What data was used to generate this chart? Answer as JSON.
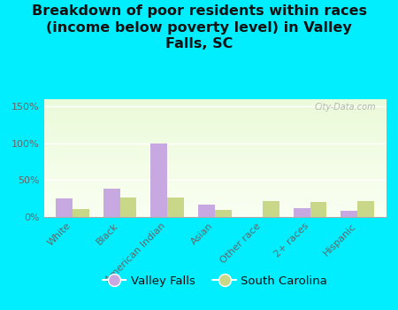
{
  "title": "Breakdown of poor residents within races\n(income below poverty level) in Valley\nFalls, SC",
  "categories": [
    "White",
    "Black",
    "American Indian",
    "Asian",
    "Other race",
    "2+ races",
    "Hispanic"
  ],
  "valley_falls": [
    25,
    38,
    100,
    17,
    0,
    12,
    8
  ],
  "south_carolina": [
    11,
    27,
    26,
    10,
    22,
    20,
    22
  ],
  "valley_falls_color": "#c8a8e0",
  "south_carolina_color": "#c8d888",
  "background_color": "#00eeff",
  "ylim": [
    0,
    160
  ],
  "yticks": [
    0,
    50,
    100,
    150
  ],
  "ytick_labels": [
    "0%",
    "50%",
    "100%",
    "150%"
  ],
  "bar_width": 0.35,
  "legend_labels": [
    "Valley Falls",
    "South Carolina"
  ],
  "watermark": "City-Data.com",
  "title_fontsize": 11.5,
  "tick_fontsize": 8
}
